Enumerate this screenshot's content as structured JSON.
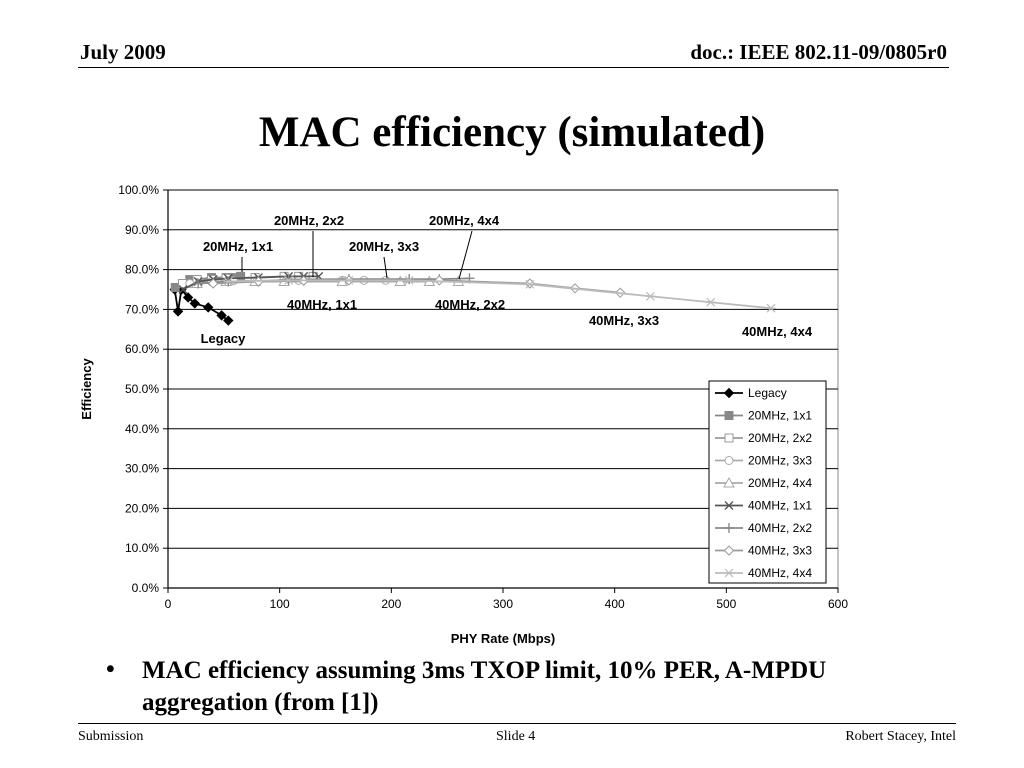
{
  "header": {
    "date": "July 2009",
    "doc": "doc.: IEEE 802.11-09/0805r0"
  },
  "title": "MAC efficiency (simulated)",
  "bullet": "MAC efficiency assuming 3ms TXOP limit, 10% PER, A-MPDU aggregation (from [1])",
  "footer": {
    "left": "Submission",
    "center": "Slide 4",
    "right": "Robert Stacey, Intel"
  },
  "chart_data": {
    "type": "scatter",
    "xlabel": "PHY Rate (Mbps)",
    "ylabel": "Efficiency",
    "xlim": [
      0,
      600
    ],
    "ylim": [
      0,
      100
    ],
    "x_ticks": [
      "0",
      "100",
      "200",
      "300",
      "400",
      "500",
      "600"
    ],
    "y_ticks": [
      "0.0%",
      "10.0%",
      "20.0%",
      "30.0%",
      "40.0%",
      "50.0%",
      "60.0%",
      "70.0%",
      "80.0%",
      "90.0%",
      "100.0%"
    ],
    "grid": "horizontal",
    "legend_position": "lower-right",
    "series": [
      {
        "name": "Legacy",
        "marker": "diamond-filled",
        "color": "#000000",
        "points": [
          [
            6,
            75
          ],
          [
            9,
            69.5
          ],
          [
            12,
            75
          ],
          [
            18,
            73
          ],
          [
            24,
            71.5
          ],
          [
            36,
            70.5
          ],
          [
            48,
            68.5
          ],
          [
            54,
            67.2
          ]
        ]
      },
      {
        "name": "20MHz, 1x1",
        "marker": "square-filled",
        "color": "#888888",
        "points": [
          [
            6.5,
            75.5
          ],
          [
            13,
            76.5
          ],
          [
            19.5,
            77.5
          ],
          [
            26,
            77.5
          ],
          [
            39,
            78
          ],
          [
            52,
            78
          ],
          [
            58.5,
            78
          ],
          [
            65,
            78.3
          ]
        ]
      },
      {
        "name": "20MHz, 2x2",
        "marker": "square-open",
        "color": "#999999",
        "points": [
          [
            13,
            76.5
          ],
          [
            26,
            77.5
          ],
          [
            39,
            77.5
          ],
          [
            52,
            77.8
          ],
          [
            78,
            78
          ],
          [
            104,
            78.3
          ],
          [
            117,
            78.3
          ],
          [
            130,
            78.3
          ]
        ]
      },
      {
        "name": "20MHz, 3x3",
        "marker": "circle-open",
        "color": "#aaaaaa",
        "points": [
          [
            19.5,
            76.5
          ],
          [
            39,
            77
          ],
          [
            58.5,
            77.2
          ],
          [
            78,
            77.2
          ],
          [
            117,
            77.3
          ],
          [
            156,
            77.3
          ],
          [
            175.5,
            77.3
          ],
          [
            195,
            77.3
          ]
        ]
      },
      {
        "name": "20MHz, 4x4",
        "marker": "triangle-open",
        "color": "#aaaaaa",
        "points": [
          [
            26,
            76.5
          ],
          [
            52,
            77
          ],
          [
            78,
            77
          ],
          [
            104,
            77
          ],
          [
            156,
            77
          ],
          [
            208,
            77
          ],
          [
            234,
            77
          ],
          [
            260,
            77
          ]
        ]
      },
      {
        "name": "40MHz, 1x1",
        "marker": "x",
        "color": "#555555",
        "points": [
          [
            13.5,
            75
          ],
          [
            27,
            77
          ],
          [
            40.5,
            77.5
          ],
          [
            54,
            77.8
          ],
          [
            81,
            78
          ],
          [
            108,
            78.3
          ],
          [
            121.5,
            78.3
          ],
          [
            135,
            78.3
          ]
        ]
      },
      {
        "name": "40MHz, 2x2",
        "marker": "plus",
        "color": "#888888",
        "points": [
          [
            27,
            76.5
          ],
          [
            54,
            77
          ],
          [
            81,
            77
          ],
          [
            108,
            77.5
          ],
          [
            162,
            77.6
          ],
          [
            216,
            77.6
          ],
          [
            243,
            77.6
          ],
          [
            270,
            77.8
          ]
        ]
      },
      {
        "name": "40MHz, 3x3",
        "marker": "diamond-open",
        "color": "#999999",
        "points": [
          [
            40.5,
            76.5
          ],
          [
            81,
            77
          ],
          [
            121.5,
            77.2
          ],
          [
            162,
            77.3
          ],
          [
            243,
            77.3
          ],
          [
            324,
            76.5
          ],
          [
            364.5,
            75.3
          ],
          [
            405,
            74.2
          ]
        ]
      },
      {
        "name": "40MHz, 4x4",
        "marker": "star",
        "color": "#bbbbbb",
        "points": [
          [
            54,
            77
          ],
          [
            108,
            77.3
          ],
          [
            162,
            77.3
          ],
          [
            216,
            77.3
          ],
          [
            324,
            76.3
          ],
          [
            432,
            73.3
          ],
          [
            486,
            71.8
          ],
          [
            540,
            70.3
          ]
        ]
      }
    ],
    "annotations": [
      "20MHz, 2x2",
      "20MHz, 4x4",
      "20MHz, 1x1",
      "20MHz, 3x3",
      "40MHz, 1x1",
      "40MHz, 2x2",
      "40MHz, 3x3",
      "40MHz, 4x4",
      "Legacy"
    ]
  }
}
